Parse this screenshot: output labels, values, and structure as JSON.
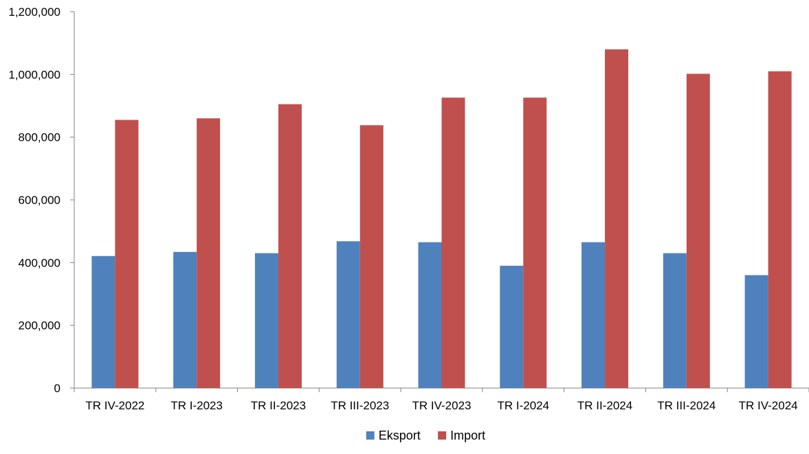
{
  "chart_data": {
    "type": "bar",
    "title": "",
    "xlabel": "",
    "ylabel": "",
    "categories": [
      "TR IV-2022",
      "TR I-2023",
      "TR II-2023",
      "TR III-2023",
      "TR IV-2023",
      "TR I-2024",
      "TR II-2024",
      "TR III-2024",
      "TR IV-2024"
    ],
    "series": [
      {
        "name": "Eksport",
        "color": "#4F81BD",
        "values": [
          421000,
          434000,
          430000,
          468000,
          465000,
          390000,
          465000,
          430000,
          360000
        ]
      },
      {
        "name": "Import",
        "color": "#C0504D",
        "values": [
          855000,
          860000,
          905000,
          838000,
          926000,
          926000,
          1080000,
          1002000,
          1010000
        ]
      }
    ],
    "ylim": [
      0,
      1200000
    ],
    "yticks": [
      0,
      200000,
      400000,
      600000,
      800000,
      1000000,
      1200000
    ],
    "ytick_labels": [
      "0",
      "200,000",
      "400,000",
      "600,000",
      "800,000",
      "1,000,000",
      "1,200,000"
    ],
    "grid": false,
    "legend_position": "bottom-center"
  }
}
